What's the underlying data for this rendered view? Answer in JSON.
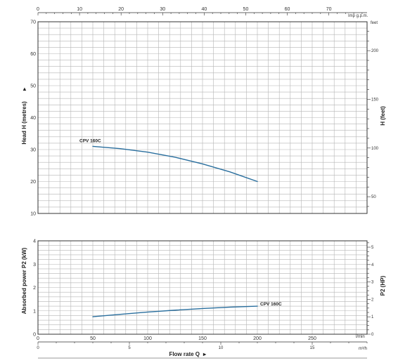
{
  "chart_data": [
    {
      "type": "line",
      "name": "head",
      "x_axis": {
        "label": "Flow rate Q",
        "unit": "l/min",
        "range": [
          0,
          300
        ],
        "ticks": [
          0,
          50,
          100,
          150,
          200,
          250
        ]
      },
      "x_axis_bottom_secondary": {
        "unit": "m³/h",
        "range": [
          0,
          18
        ],
        "ticks": [
          0,
          5,
          10,
          15
        ]
      },
      "x_axis_top": {
        "unit": "Imp g.p.m.",
        "range": [
          0,
          79.2
        ],
        "ticks": [
          0,
          10,
          20,
          30,
          40,
          50,
          60,
          70
        ]
      },
      "y_axis_left": {
        "label": "Head H  (metres)",
        "range": [
          10,
          70
        ],
        "ticks": [
          10,
          20,
          30,
          40,
          50,
          60,
          70
        ]
      },
      "y_axis_right": {
        "label": "H  (feet)",
        "unit": "feet",
        "ticks": [
          50,
          100,
          150,
          200
        ]
      },
      "series": [
        {
          "name": "CPV 160C",
          "color": "#2a6f9e",
          "points": [
            [
              50,
              31.0
            ],
            [
              75,
              30.3
            ],
            [
              100,
              29.2
            ],
            [
              125,
              27.6
            ],
            [
              150,
              25.5
            ],
            [
              175,
              23.0
            ],
            [
              200,
              20.0
            ]
          ]
        }
      ]
    },
    {
      "type": "line",
      "name": "power",
      "x_axis": {
        "label": "Flow rate Q",
        "unit": "l/min",
        "range": [
          0,
          300
        ]
      },
      "y_axis_left": {
        "label": "Absorbed power P2 (kW)",
        "range": [
          0,
          4
        ],
        "ticks": [
          0,
          1,
          2,
          3,
          4
        ]
      },
      "y_axis_right": {
        "label": "P2  (HP)",
        "ticks": [
          0,
          1,
          2,
          3,
          4,
          5
        ]
      },
      "series": [
        {
          "name": "CPV 160C",
          "color": "#2a6f9e",
          "points": [
            [
              50,
              0.75
            ],
            [
              75,
              0.85
            ],
            [
              100,
              0.95
            ],
            [
              125,
              1.03
            ],
            [
              150,
              1.1
            ],
            [
              175,
              1.16
            ],
            [
              200,
              1.2
            ]
          ]
        }
      ]
    }
  ],
  "labels": {
    "flow_title": "Flow rate Q",
    "flow_arrow": "▸",
    "head_title": "Head H  (metres)",
    "head_arrow": "▸",
    "feet_title": "H  (feet)",
    "feet_unit": "feet",
    "power_title": "Absorbed power P2 (kW)",
    "hp_title": "P2  (HP)",
    "imp_unit": "Imp g.p.m.",
    "lmin_unit": "l/min",
    "m3h_unit": "m³/h"
  }
}
